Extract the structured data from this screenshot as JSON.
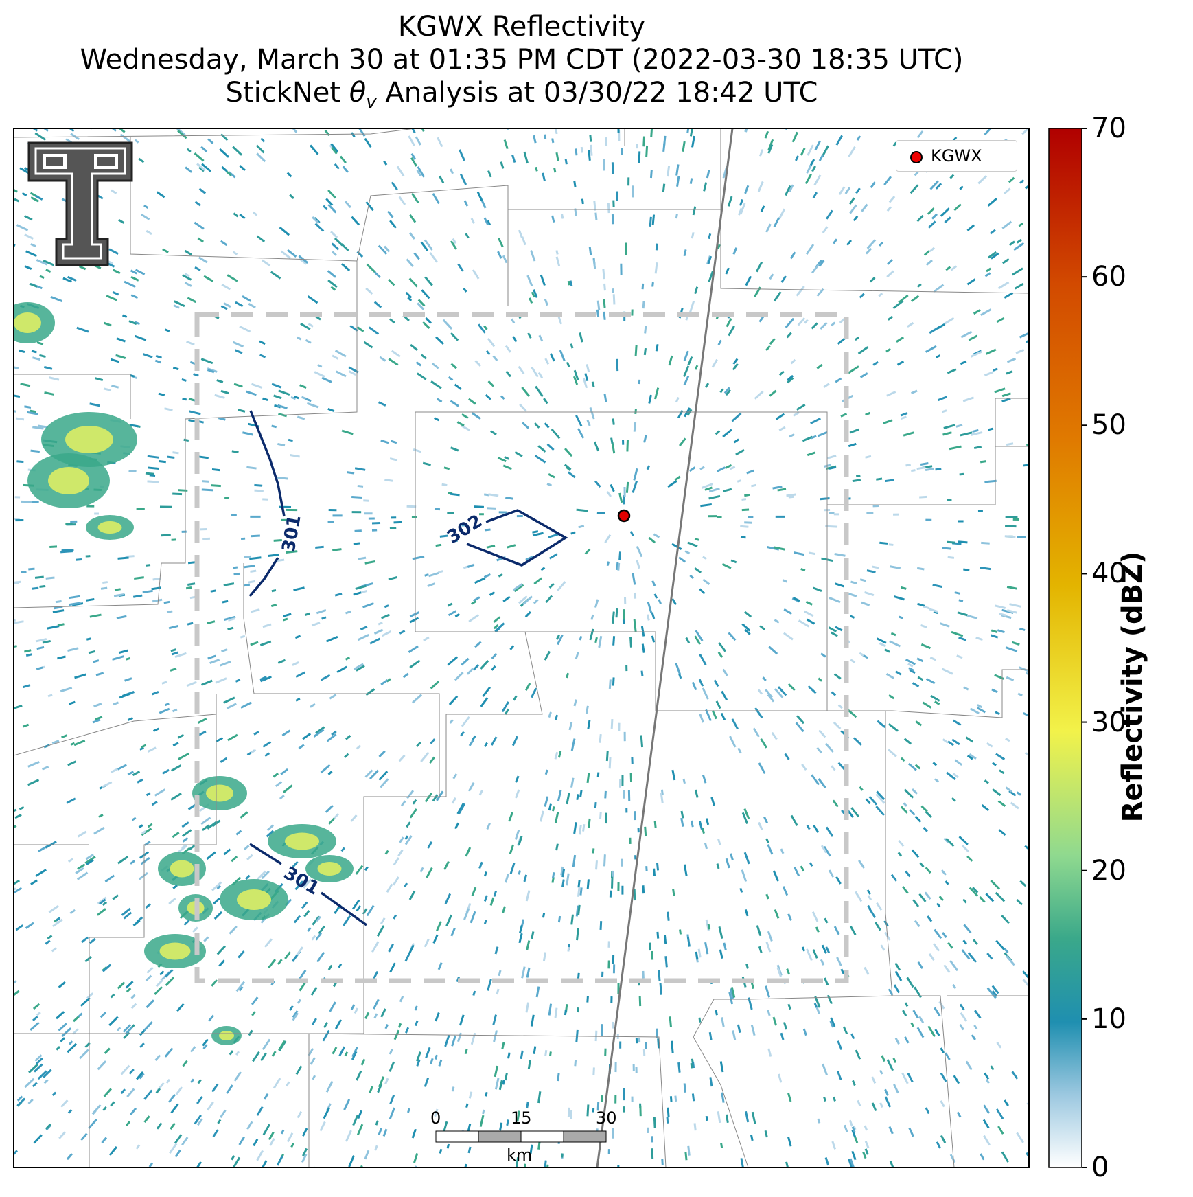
{
  "title": {
    "line1": "KGWX Reflectivity",
    "line2": "Wednesday, March 30 at 01:35 PM CDT (2022-03-30 18:35 UTC)",
    "line3_prefix": "StickNet ",
    "line3_symbol": "θ",
    "line3_subscript": "v",
    "line3_suffix": " Analysis at 03/30/22 18:42 UTC"
  },
  "legend": {
    "label": "KGWX",
    "marker_color": "#e00000"
  },
  "colorbar": {
    "label": "Reflectivity (dBZ)",
    "ticks": [
      "0",
      "10",
      "20",
      "30",
      "40",
      "50",
      "60",
      "70"
    ],
    "colors": [
      "#ffffff",
      "#1f8fb0",
      "#8fd98f",
      "#f2f24a",
      "#e3b400",
      "#e07a00",
      "#d24a00",
      "#b00000"
    ]
  },
  "contours": [
    {
      "label": "301"
    },
    {
      "label": "302"
    },
    {
      "label": "301"
    }
  ],
  "scale_bar": {
    "ticks": [
      "0",
      "15",
      "30"
    ],
    "unit": "km"
  },
  "radar": {
    "name": "KGWX",
    "color": "#e00000"
  },
  "logo": {
    "name": "texas-tech-logo"
  }
}
